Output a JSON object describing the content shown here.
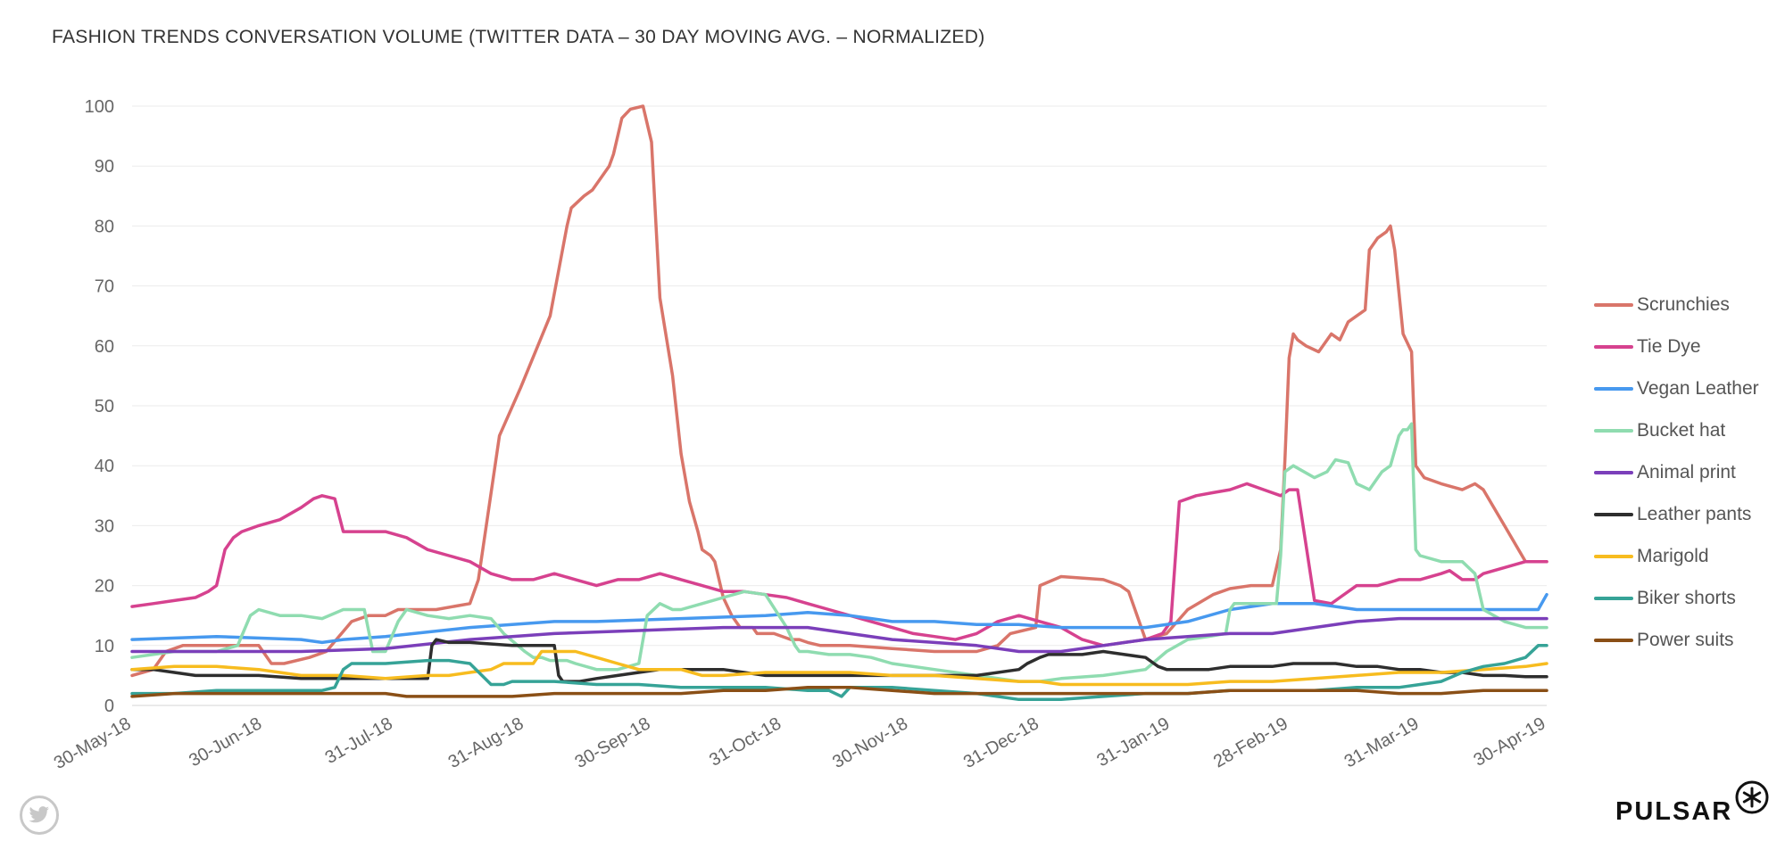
{
  "chart_data": {
    "type": "line",
    "title": "FASHION TRENDS CONVERSATION VOLUME (TWITTER DATA – 30 DAY MOVING AVG. – NORMALIZED)",
    "xlabel": "",
    "ylabel": "",
    "ylim": [
      0,
      100
    ],
    "yticks": [
      0,
      10,
      20,
      30,
      40,
      50,
      60,
      70,
      80,
      90,
      100
    ],
    "xlim": [
      0,
      335
    ],
    "xticks": [
      {
        "label": "30-May-18",
        "day": 0
      },
      {
        "label": "30-Jun-18",
        "day": 31
      },
      {
        "label": "31-Jul-18",
        "day": 62
      },
      {
        "label": "31-Aug-18",
        "day": 93
      },
      {
        "label": "30-Sep-18",
        "day": 123
      },
      {
        "label": "31-Oct-18",
        "day": 154
      },
      {
        "label": "30-Nov-18",
        "day": 184
      },
      {
        "label": "31-Dec-18",
        "day": 215
      },
      {
        "label": "31-Jan-19",
        "day": 246
      },
      {
        "label": "28-Feb-19",
        "day": 274
      },
      {
        "label": "31-Mar-19",
        "day": 305
      },
      {
        "label": "30-Apr-19",
        "day": 335
      }
    ],
    "legend_position": "right",
    "grid": true,
    "series": [
      {
        "name": "Scrunchies",
        "color": "#d9756a",
        "x": [
          0,
          5,
          8,
          12,
          20,
          30,
          33,
          36,
          42,
          46,
          52,
          56,
          60,
          63,
          66,
          72,
          80,
          82,
          87,
          92,
          99,
          103,
          104,
          107,
          109,
          111,
          113,
          114,
          115,
          116,
          118,
          121,
          123,
          125,
          128,
          130,
          132,
          134,
          135,
          137,
          138,
          140,
          142,
          144,
          146,
          147,
          148,
          149,
          150,
          152,
          156,
          158,
          160,
          163,
          166,
          170,
          180,
          190,
          200,
          205,
          208,
          214,
          215,
          220,
          230,
          234,
          236,
          240,
          245,
          250,
          256,
          260,
          265,
          270,
          272,
          273,
          274,
          275,
          276,
          278,
          281,
          284,
          286,
          288,
          290,
          292,
          293,
          295,
          297,
          298,
          299,
          301,
          303,
          304,
          306,
          310,
          315,
          318,
          320,
          325,
          330,
          335
        ],
        "y": [
          5,
          6,
          9,
          10,
          10,
          10,
          7,
          7,
          8,
          9,
          14,
          15,
          15,
          16,
          16,
          16,
          17,
          21,
          45,
          53,
          65,
          80,
          83,
          85,
          86,
          88,
          90,
          92,
          95,
          98,
          99.5,
          100,
          94,
          68,
          55,
          42,
          34,
          29,
          26,
          25,
          24,
          18,
          15,
          13,
          13,
          13,
          12,
          12,
          12,
          12,
          11,
          11,
          10.5,
          10,
          10,
          10,
          9.5,
          9,
          9,
          10,
          12,
          13,
          20,
          21.5,
          21,
          20,
          19,
          11,
          12,
          16,
          18.5,
          19.5,
          20,
          20,
          26,
          41,
          58,
          62,
          61,
          60,
          59,
          62,
          61,
          64,
          65,
          66,
          76,
          78,
          79,
          80,
          76,
          62,
          59,
          40,
          38,
          37,
          36,
          37,
          36,
          30,
          24,
          24
        ]
      },
      {
        "name": "Tie Dye",
        "color": "#d6428f",
        "x": [
          0,
          5,
          10,
          15,
          18,
          20,
          22,
          24,
          26,
          30,
          35,
          40,
          43,
          45,
          48,
          50,
          52,
          55,
          60,
          65,
          70,
          75,
          80,
          85,
          90,
          95,
          100,
          105,
          110,
          115,
          120,
          125,
          130,
          135,
          140,
          145,
          150,
          155,
          160,
          165,
          170,
          175,
          180,
          185,
          190,
          195,
          200,
          205,
          210,
          215,
          220,
          225,
          230,
          235,
          240,
          244,
          246,
          248,
          252,
          256,
          260,
          264,
          268,
          272,
          274,
          275,
          276,
          280,
          284,
          286,
          290,
          295,
          300,
          305,
          310,
          312,
          315,
          318,
          320,
          325,
          330,
          335
        ],
        "y": [
          16.5,
          17,
          17.5,
          18,
          19,
          20,
          26,
          28,
          29,
          30,
          31,
          33,
          34.5,
          35,
          34.5,
          29,
          29,
          29,
          29,
          28,
          26,
          25,
          24,
          22,
          21,
          21,
          22,
          21,
          20,
          21,
          21,
          22,
          21,
          20,
          19,
          19,
          18.5,
          18,
          17,
          16,
          15,
          14,
          13,
          12,
          11.5,
          11,
          12,
          14,
          15,
          14,
          13,
          11,
          10,
          10.5,
          11,
          12,
          14,
          34,
          35,
          35.5,
          36,
          37,
          36,
          35,
          36,
          36,
          36,
          17.5,
          17,
          18,
          20,
          20,
          21,
          21,
          22,
          22.5,
          21,
          21,
          22,
          23,
          24,
          24
        ]
      },
      {
        "name": "Vegan Leather",
        "color": "#4799ef",
        "x": [
          0,
          20,
          40,
          45,
          50,
          60,
          80,
          100,
          110,
          130,
          150,
          160,
          170,
          180,
          190,
          200,
          210,
          220,
          230,
          240,
          250,
          260,
          270,
          280,
          290,
          300,
          310,
          320,
          330,
          333,
          335
        ],
        "y": [
          11,
          11.5,
          11,
          10.5,
          11,
          11.5,
          13,
          14,
          14,
          14.5,
          15,
          15.5,
          15,
          14,
          14,
          13.5,
          13.5,
          13,
          13,
          13,
          14,
          16,
          17,
          17,
          16,
          16,
          16,
          16,
          16,
          16,
          18.5
        ]
      },
      {
        "name": "Bucket hat",
        "color": "#8fdcb0",
        "x": [
          0,
          10,
          20,
          25,
          28,
          30,
          35,
          40,
          45,
          50,
          53,
          55,
          57,
          60,
          63,
          65,
          70,
          75,
          80,
          85,
          88,
          93,
          95,
          97,
          99,
          101,
          103,
          105,
          110,
          115,
          120,
          122,
          125,
          128,
          130,
          135,
          140,
          145,
          150,
          155,
          157,
          158,
          160,
          165,
          170,
          175,
          180,
          190,
          200,
          210,
          215,
          220,
          230,
          240,
          245,
          250,
          255,
          259,
          260,
          261,
          265,
          270,
          271,
          272,
          273,
          275,
          280,
          283,
          285,
          288,
          290,
          293,
          295,
          296,
          298,
          300,
          301,
          302,
          303,
          304,
          305,
          310,
          315,
          318,
          320,
          325,
          330,
          335
        ],
        "y": [
          8,
          9,
          9,
          10,
          15,
          16,
          15,
          15,
          14.5,
          16,
          16,
          16,
          9,
          9,
          14,
          16,
          15,
          14.5,
          15,
          14.5,
          12,
          9,
          8,
          8,
          7.5,
          7.5,
          7.5,
          7,
          6,
          6,
          7,
          15,
          17,
          16,
          16,
          17,
          18,
          19,
          18.5,
          13,
          10,
          9,
          9,
          8.5,
          8.5,
          8,
          7,
          6,
          5,
          4,
          4,
          4.5,
          5,
          6,
          9,
          11,
          11.5,
          12,
          16,
          17,
          17,
          17,
          17,
          25,
          39,
          40,
          38,
          39,
          41,
          40.5,
          37,
          36,
          38,
          39,
          40,
          45,
          46,
          46,
          47,
          26,
          25,
          24,
          24,
          22,
          16,
          14,
          13,
          13
        ]
      },
      {
        "name": "Animal print",
        "color": "#7b3fba",
        "x": [
          0,
          20,
          40,
          60,
          80,
          100,
          120,
          140,
          160,
          170,
          180,
          190,
          200,
          210,
          220,
          230,
          240,
          260,
          270,
          280,
          290,
          300,
          310,
          320,
          330,
          335
        ],
        "y": [
          9,
          9,
          9,
          9.5,
          11,
          12,
          12.5,
          13,
          13,
          12,
          11,
          10.5,
          10,
          9,
          9,
          10,
          11,
          12,
          12,
          13,
          14,
          14.5,
          14.5,
          14.5,
          14.5,
          14.5
        ]
      },
      {
        "name": "Leather pants",
        "color": "#2e2e2e",
        "x": [
          0,
          5,
          10,
          15,
          20,
          30,
          40,
          50,
          60,
          70,
          71,
          72,
          75,
          80,
          90,
          100,
          101,
          102,
          104,
          106,
          110,
          115,
          120,
          125,
          130,
          140,
          150,
          160,
          170,
          180,
          190,
          200,
          210,
          212,
          215,
          217,
          220,
          225,
          230,
          235,
          240,
          242,
          243,
          245,
          250,
          255,
          260,
          265,
          270,
          275,
          280,
          285,
          290,
          295,
          300,
          305,
          310,
          315,
          320,
          325,
          330,
          335
        ],
        "y": [
          6,
          6,
          5.5,
          5,
          5,
          5,
          4.5,
          4.5,
          4.5,
          4.5,
          10,
          11,
          10.5,
          10.5,
          10,
          10,
          5,
          4,
          4,
          4,
          4.5,
          5,
          5.5,
          6,
          6,
          6,
          5,
          5,
          5,
          5,
          5,
          5,
          6,
          7,
          8,
          8.5,
          8.5,
          8.5,
          9,
          8.5,
          8,
          7,
          6.5,
          6,
          6,
          6,
          6.5,
          6.5,
          6.5,
          7,
          7,
          7,
          6.5,
          6.5,
          6,
          6,
          5.5,
          5.5,
          5,
          5,
          4.8,
          4.8
        ]
      },
      {
        "name": "Marigold",
        "color": "#f7bc1f",
        "x": [
          0,
          10,
          20,
          30,
          35,
          40,
          50,
          60,
          70,
          75,
          80,
          85,
          88,
          90,
          95,
          97,
          98,
          100,
          105,
          110,
          115,
          120,
          125,
          130,
          135,
          140,
          150,
          160,
          170,
          180,
          190,
          200,
          210,
          215,
          220,
          230,
          240,
          250,
          260,
          270,
          280,
          290,
          300,
          310,
          320,
          330,
          335
        ],
        "y": [
          6,
          6.5,
          6.5,
          6,
          5.5,
          5,
          5,
          4.5,
          5,
          5,
          5.5,
          6,
          7,
          7,
          7,
          9,
          9,
          9,
          9,
          8,
          7,
          6,
          6,
          6,
          5,
          5,
          5.5,
          5.5,
          5.5,
          5,
          5,
          4.5,
          4,
          4,
          3.5,
          3.5,
          3.5,
          3.5,
          4,
          4,
          4.5,
          5,
          5.5,
          5.5,
          6,
          6.5,
          7
        ]
      },
      {
        "name": "Biker shorts",
        "color": "#36a397",
        "x": [
          0,
          10,
          20,
          30,
          40,
          45,
          48,
          50,
          52,
          55,
          58,
          60,
          70,
          72,
          75,
          80,
          85,
          88,
          90,
          95,
          100,
          110,
          120,
          130,
          140,
          150,
          160,
          165,
          168,
          170,
          175,
          180,
          190,
          200,
          210,
          220,
          230,
          240,
          250,
          260,
          270,
          280,
          290,
          300,
          305,
          310,
          315,
          320,
          325,
          330,
          333,
          335
        ],
        "y": [
          2,
          2,
          2.5,
          2.5,
          2.5,
          2.5,
          3,
          6,
          7,
          7,
          7,
          7,
          7.5,
          7.5,
          7.5,
          7,
          3.5,
          3.5,
          4,
          4,
          4,
          3.5,
          3.5,
          3,
          3,
          3,
          2.5,
          2.5,
          1.5,
          3,
          3,
          3,
          2.5,
          2,
          1,
          1,
          1.5,
          2,
          2,
          2.5,
          2.5,
          2.5,
          3,
          3,
          3.5,
          4,
          5.5,
          6.5,
          7,
          8,
          10,
          10
        ]
      },
      {
        "name": "Power suits",
        "color": "#8a4f16",
        "x": [
          0,
          10,
          20,
          30,
          40,
          50,
          60,
          65,
          70,
          80,
          90,
          100,
          110,
          120,
          130,
          140,
          150,
          160,
          170,
          180,
          190,
          200,
          210,
          220,
          230,
          240,
          250,
          260,
          270,
          280,
          290,
          300,
          310,
          320,
          330,
          335
        ],
        "y": [
          1.5,
          2,
          2,
          2,
          2,
          2,
          2,
          1.5,
          1.5,
          1.5,
          1.5,
          2,
          2,
          2,
          2,
          2.5,
          2.5,
          3,
          3,
          2.5,
          2,
          2,
          2,
          2,
          2,
          2,
          2,
          2.5,
          2.5,
          2.5,
          2.5,
          2,
          2,
          2.5,
          2.5,
          2.5
        ]
      }
    ]
  },
  "legend": {
    "labels": [
      "Scrunchies",
      "Tie Dye",
      "Vegan Leather",
      "Bucket hat",
      "Animal print",
      "Leather pants",
      "Marigold",
      "Biker shorts",
      "Power suits"
    ]
  },
  "brand": {
    "name": "PULSAR",
    "mark_icon": "pulsar-star-icon",
    "source_icon": "twitter-icon"
  }
}
